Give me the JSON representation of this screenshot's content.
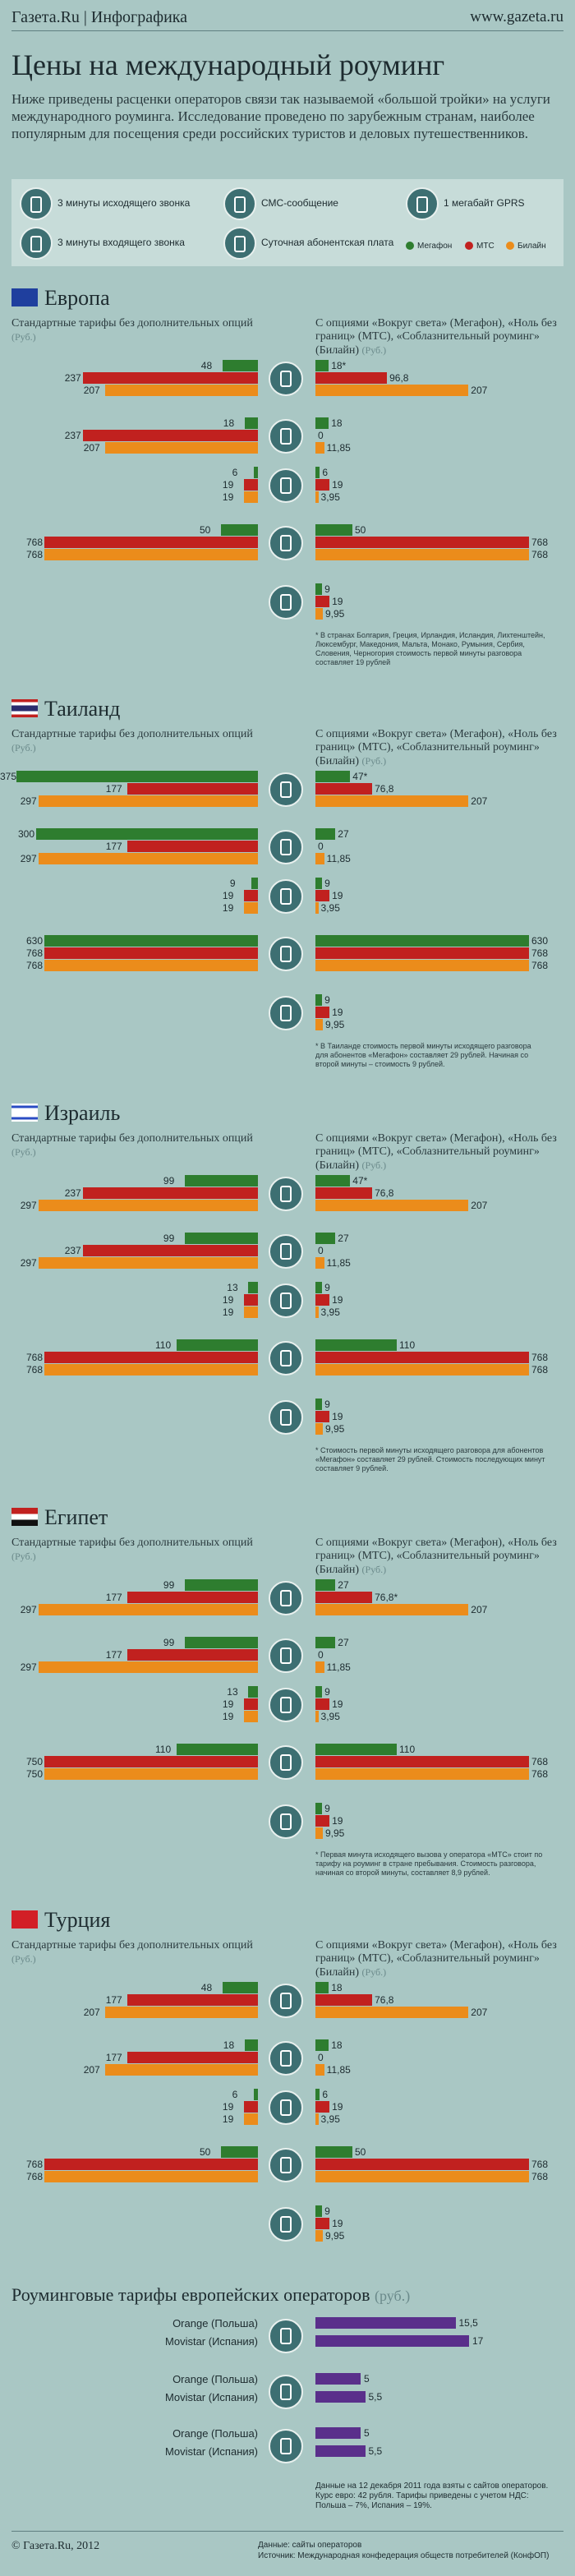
{
  "header": {
    "logo": "Газета.Ru | Инфографика",
    "site": "www.gazeta.ru"
  },
  "title": "Цены на международный роуминг",
  "intro": "Ниже приведены расценки операторов связи так называемой «большой тройки» на услуги международного роуминга. Исследование проведено по зарубежным странам, наиболее популярным для посещения среди российских туристов и деловых путешественников.",
  "legend": {
    "items": [
      {
        "icon": "outgoing-call-icon",
        "label": "3 минуты исходящего звонка"
      },
      {
        "icon": "incoming-call-icon",
        "label": "3 минуты входящего звонка"
      },
      {
        "icon": "sms-icon",
        "label": "СМС-сообщение"
      },
      {
        "icon": "daily-fee-icon",
        "label": "Суточная абонентская плата"
      },
      {
        "icon": "gprs-icon",
        "label": "1 мегабайт GPRS"
      }
    ],
    "operators": [
      {
        "name": "Мегафон",
        "color": "#2e7d2f"
      },
      {
        "name": "МТС",
        "color": "#c1211f"
      },
      {
        "name": "Билайн",
        "color": "#eb8c1b"
      }
    ]
  },
  "left_heading": "Стандартные тарифы без дополнительных опций",
  "right_heading": "С опциями «Вокруг света» (Мегафон), «Ноль без границ» (МТС), «Соблазнительный роуминг» (Билайн)",
  "unit": "(Руб.)",
  "sections": [
    {
      "country": "Европа",
      "rows": [
        {
          "left": [
            "48",
            "237",
            "207"
          ],
          "right": [
            "18*",
            "96,8",
            "207"
          ]
        },
        {
          "left": [
            "18",
            "237",
            "207"
          ],
          "right": [
            "18",
            "0",
            "11,85"
          ]
        },
        {
          "left": [
            "6",
            "19",
            "19"
          ],
          "right": [
            "6",
            "19",
            "3,95"
          ]
        },
        {
          "left": [
            "50",
            "768",
            "768"
          ],
          "right": [
            "50",
            "768",
            "768"
          ]
        },
        {
          "left": null,
          "right": [
            "9",
            "19",
            "9,95"
          ]
        }
      ],
      "note": "* В странах Болгария, Греция, Ирландия, Исландия, Лихтенштейн, Люксембург, Македония, Мальта, Монако, Румыния, Сербия, Словения, Черногория стоимость первой минуты разговора составляет 19 рублей"
    },
    {
      "country": "Таиланд",
      "rows": [
        {
          "left": [
            "375",
            "177",
            "297"
          ],
          "right": [
            "47*",
            "76,8",
            "207"
          ]
        },
        {
          "left": [
            "300",
            "177",
            "297"
          ],
          "right": [
            "27",
            "0",
            "11,85"
          ]
        },
        {
          "left": [
            "9",
            "19",
            "19"
          ],
          "right": [
            "9",
            "19",
            "3,95"
          ]
        },
        {
          "left": [
            "630",
            "768",
            "768"
          ],
          "right": [
            "630",
            "768",
            "768"
          ]
        },
        {
          "left": null,
          "right": [
            "9",
            "19",
            "9,95"
          ]
        }
      ],
      "note": "* В Таиланде стоимость первой минуты исходящего разговора для абонентов «Мегафон» составляет 29 рублей. Начиная со второй минуты – стоимость 9 рублей."
    },
    {
      "country": "Израиль",
      "rows": [
        {
          "left": [
            "99",
            "237",
            "297"
          ],
          "right": [
            "47*",
            "76,8",
            "207"
          ]
        },
        {
          "left": [
            "99",
            "237",
            "297"
          ],
          "right": [
            "27",
            "0",
            "11,85"
          ]
        },
        {
          "left": [
            "13",
            "19",
            "19"
          ],
          "right": [
            "9",
            "19",
            "3,95"
          ]
        },
        {
          "left": [
            "110",
            "768",
            "768"
          ],
          "right": [
            "110",
            "768",
            "768"
          ]
        },
        {
          "left": null,
          "right": [
            "9",
            "19",
            "9,95"
          ]
        }
      ],
      "note": "* Стоимость первой минуты исходящего разговора для абонентов «Мегафон» составляет 29 рублей. Стоимость последующих минут составляет 9 рублей."
    },
    {
      "country": "Египет",
      "rows": [
        {
          "left": [
            "99",
            "177",
            "297"
          ],
          "right": [
            "27",
            "76,8*",
            "207"
          ]
        },
        {
          "left": [
            "99",
            "177",
            "297"
          ],
          "right": [
            "27",
            "0",
            "11,85"
          ]
        },
        {
          "left": [
            "13",
            "19",
            "19"
          ],
          "right": [
            "9",
            "19",
            "3,95"
          ]
        },
        {
          "left": [
            "110",
            "750",
            "750"
          ],
          "right": [
            "110",
            "768",
            "768"
          ]
        },
        {
          "left": null,
          "right": [
            "9",
            "19",
            "9,95"
          ]
        }
      ],
      "note": "* Первая минута исходящего вызова у оператора «МТС» стоит по тарифу на роуминг в стране пребывания. Стоимость разговора, начиная со второй минуты, составляет 8,9 рублей."
    },
    {
      "country": "Турция",
      "rows": [
        {
          "left": [
            "48",
            "177",
            "207"
          ],
          "right": [
            "18",
            "76,8",
            "207"
          ]
        },
        {
          "left": [
            "18",
            "177",
            "207"
          ],
          "right": [
            "18",
            "0",
            "11,85"
          ]
        },
        {
          "left": [
            "6",
            "19",
            "19"
          ],
          "right": [
            "6",
            "19",
            "3,95"
          ]
        },
        {
          "left": [
            "50",
            "768",
            "768"
          ],
          "right": [
            "50",
            "768",
            "768"
          ]
        },
        {
          "left": null,
          "right": [
            "9",
            "19",
            "9,95"
          ]
        }
      ],
      "note": ""
    }
  ],
  "eu_section": {
    "title": "Роуминговые тарифы европейских операторов",
    "unit": "(руб.)",
    "groups": [
      {
        "rows": [
          {
            "label": "Orange (Польша)",
            "value": "15,5"
          },
          {
            "label": "Movistar (Испания)",
            "value": "17"
          }
        ]
      },
      {
        "rows": [
          {
            "label": "Orange (Польша)",
            "value": "5"
          },
          {
            "label": "Movistar (Испания)",
            "value": "5,5"
          }
        ]
      },
      {
        "rows": [
          {
            "label": "Orange (Польша)",
            "value": "5"
          },
          {
            "label": "Movistar (Испания)",
            "value": "5,5"
          }
        ]
      }
    ],
    "note": "Данные на 12 декабря 2011 года взяты с сайтов операторов. Курс евро: 42 рубля. Тарифы приведены с учетом НДС: Польша – 7%, Испания – 19%."
  },
  "footer": {
    "left": "© Газета.Ru, 2012",
    "source1": "Данные: сайты операторов",
    "source2": "Источник: Международная конфедерация обществ потребителей (КонфОП)"
  },
  "chart_data": [
    {
      "type": "bar",
      "title": "Европа",
      "categories": [
        "3 минуты исходящего звонка",
        "3 минуты входящего звонка",
        "СМС-сообщение",
        "1 мегабайт GPRS",
        "Суточная абонентская плата"
      ],
      "series": [
        {
          "name": "Мегафон",
          "standard": [
            48,
            18,
            6,
            50,
            null
          ],
          "options": [
            18,
            18,
            6,
            50,
            9
          ]
        },
        {
          "name": "МТС",
          "standard": [
            237,
            237,
            19,
            768,
            null
          ],
          "options": [
            96.8,
            0,
            19,
            768,
            19
          ]
        },
        {
          "name": "Билайн",
          "standard": [
            207,
            207,
            19,
            768,
            null
          ],
          "options": [
            207,
            11.85,
            3.95,
            768,
            9.95
          ]
        }
      ]
    },
    {
      "type": "bar",
      "title": "Таиланд",
      "categories": [
        "3 минуты исходящего звонка",
        "3 минуты входящего звонка",
        "СМС-сообщение",
        "1 мегабайт GPRS",
        "Суточная абонентская плата"
      ],
      "series": [
        {
          "name": "Мегафон",
          "standard": [
            375,
            300,
            9,
            630,
            null
          ],
          "options": [
            47,
            27,
            9,
            630,
            9
          ]
        },
        {
          "name": "МТС",
          "standard": [
            177,
            177,
            19,
            768,
            null
          ],
          "options": [
            76.8,
            0,
            19,
            768,
            19
          ]
        },
        {
          "name": "Билайн",
          "standard": [
            297,
            297,
            19,
            768,
            null
          ],
          "options": [
            207,
            11.85,
            3.95,
            768,
            9.95
          ]
        }
      ]
    },
    {
      "type": "bar",
      "title": "Израиль",
      "categories": [
        "3 минуты исходящего звонка",
        "3 минуты входящего звонка",
        "СМС-сообщение",
        "1 мегабайт GPRS",
        "Суточная абонентская плата"
      ],
      "series": [
        {
          "name": "Мегафон",
          "standard": [
            99,
            99,
            13,
            110,
            null
          ],
          "options": [
            47,
            27,
            9,
            110,
            9
          ]
        },
        {
          "name": "МТС",
          "standard": [
            237,
            237,
            19,
            768,
            null
          ],
          "options": [
            76.8,
            0,
            19,
            768,
            19
          ]
        },
        {
          "name": "Билайн",
          "standard": [
            297,
            297,
            19,
            768,
            null
          ],
          "options": [
            207,
            11.85,
            3.95,
            768,
            9.95
          ]
        }
      ]
    },
    {
      "type": "bar",
      "title": "Египет",
      "categories": [
        "3 минуты исходящего звонка",
        "3 минуты входящего звонка",
        "СМС-сообщение",
        "1 мегабайт GPRS",
        "Суточная абонентская плата"
      ],
      "series": [
        {
          "name": "Мегафон",
          "standard": [
            99,
            99,
            13,
            110,
            null
          ],
          "options": [
            27,
            27,
            9,
            110,
            9
          ]
        },
        {
          "name": "МТС",
          "standard": [
            177,
            177,
            19,
            750,
            null
          ],
          "options": [
            76.8,
            0,
            19,
            768,
            19
          ]
        },
        {
          "name": "Билайн",
          "standard": [
            297,
            297,
            19,
            750,
            null
          ],
          "options": [
            207,
            11.85,
            3.95,
            768,
            9.95
          ]
        }
      ]
    },
    {
      "type": "bar",
      "title": "Турция",
      "categories": [
        "3 минуты исходящего звонка",
        "3 минуты входящего звонка",
        "СМС-сообщение",
        "1 мегабайт GPRS",
        "Суточная абонентская плата"
      ],
      "series": [
        {
          "name": "Мегафон",
          "standard": [
            48,
            18,
            6,
            50,
            null
          ],
          "options": [
            18,
            18,
            6,
            50,
            9
          ]
        },
        {
          "name": "МТС",
          "standard": [
            177,
            177,
            19,
            768,
            null
          ],
          "options": [
            76.8,
            0,
            19,
            768,
            19
          ]
        },
        {
          "name": "Билайн",
          "standard": [
            207,
            207,
            19,
            768,
            null
          ],
          "options": [
            207,
            11.85,
            3.95,
            768,
            9.95
          ]
        }
      ]
    },
    {
      "type": "bar",
      "title": "Роуминговые тарифы европейских операторов",
      "categories": [
        "3 минуты исходящего звонка",
        "3 минуты входящего звонка",
        "СМС-сообщение"
      ],
      "series": [
        {
          "name": "Orange (Польша)",
          "values": [
            15.5,
            5,
            5
          ]
        },
        {
          "name": "Movistar (Испания)",
          "values": [
            17,
            5.5,
            5.5
          ]
        }
      ]
    }
  ]
}
